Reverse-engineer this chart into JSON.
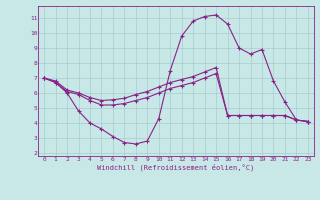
{
  "xlabel": "Windchill (Refroidissement éolien,°C)",
  "x_values": [
    0,
    1,
    2,
    3,
    4,
    5,
    6,
    7,
    8,
    9,
    10,
    11,
    12,
    13,
    14,
    15,
    16,
    17,
    18,
    19,
    20,
    21,
    22,
    23
  ],
  "line1_y": [
    7.0,
    6.7,
    6.0,
    4.8,
    4.0,
    3.6,
    3.1,
    2.7,
    2.6,
    2.8,
    4.3,
    7.5,
    9.8,
    10.8,
    11.1,
    11.2,
    10.6,
    9.0,
    8.6,
    8.9,
    6.8,
    5.4,
    4.2,
    4.1
  ],
  "line2_y": [
    7.0,
    6.7,
    6.1,
    5.9,
    5.5,
    5.2,
    5.2,
    5.3,
    5.5,
    5.7,
    6.0,
    6.3,
    6.5,
    6.7,
    7.0,
    7.3,
    4.5,
    4.5,
    4.5,
    4.5,
    4.5,
    4.5,
    4.2,
    4.1
  ],
  "line3_y": [
    7.0,
    6.8,
    6.2,
    6.0,
    5.7,
    5.5,
    5.55,
    5.65,
    5.9,
    6.1,
    6.4,
    6.7,
    6.9,
    7.1,
    7.4,
    7.7,
    4.5,
    4.5,
    4.5,
    4.5,
    4.5,
    4.5,
    4.2,
    4.1
  ],
  "line_color": "#882288",
  "bg_color": "#c8e8e8",
  "grid_color": "#a8cccc",
  "ylim_min": 1.8,
  "ylim_max": 11.8,
  "xlim_min": -0.5,
  "xlim_max": 23.5,
  "yticks": [
    2,
    3,
    4,
    5,
    6,
    7,
    8,
    9,
    10,
    11
  ],
  "xticks": [
    0,
    1,
    2,
    3,
    4,
    5,
    6,
    7,
    8,
    9,
    10,
    11,
    12,
    13,
    14,
    15,
    16,
    17,
    18,
    19,
    20,
    21,
    22,
    23
  ]
}
